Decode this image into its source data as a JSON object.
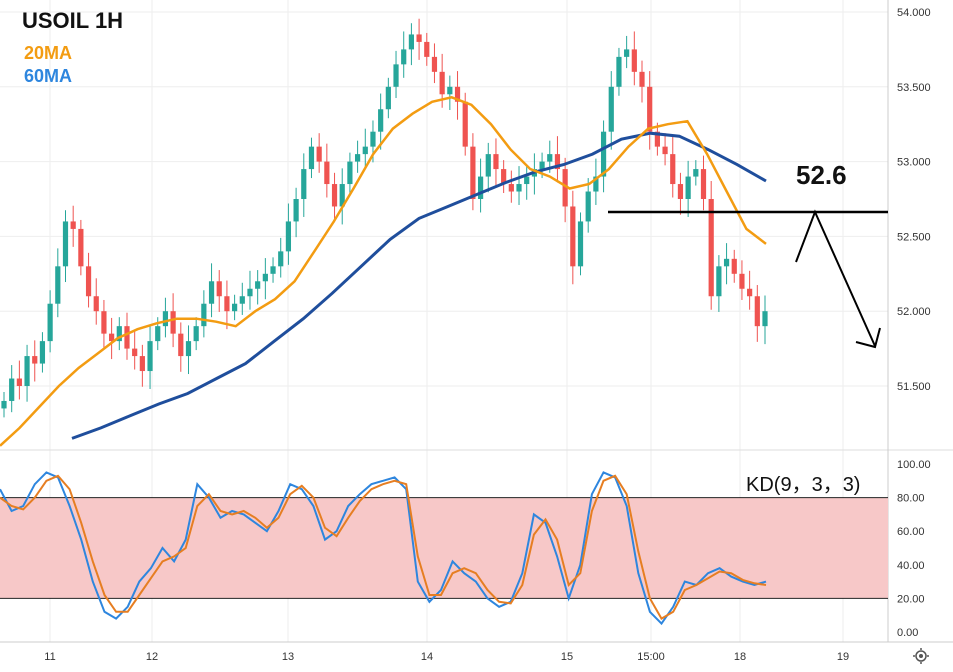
{
  "header": {
    "title": "USOIL 1H",
    "ma20_label": "20MA",
    "ma60_label": "60MA",
    "kd_label": "KD(9，3，3)",
    "level_label": "52.6"
  },
  "colors": {
    "bull": "#26a69a",
    "bear": "#ef5350",
    "ma20": "#f39c12",
    "ma60": "#1f4e9c",
    "k_line": "#2e86de",
    "d_line": "#e67e22",
    "kd_band": "#f7c8c8"
  },
  "chart_data": [
    {
      "type": "candlestick",
      "title": "USOIL 1H",
      "ylim": [
        51.1,
        54.05
      ],
      "y_ticks": [
        "54.000",
        "53.500",
        "53.000",
        "52.500",
        "52.000",
        "51.500"
      ],
      "x_ticks": [
        "11",
        "12",
        "13",
        "14",
        "15",
        "15:00",
        "18",
        "19"
      ],
      "grid": true,
      "candles_close": [
        51.4,
        51.55,
        51.5,
        51.7,
        51.65,
        51.8,
        52.05,
        52.3,
        52.6,
        52.55,
        52.3,
        52.1,
        52.0,
        51.85,
        51.8,
        51.9,
        51.75,
        51.7,
        51.6,
        51.8,
        51.9,
        52.0,
        51.85,
        51.7,
        51.8,
        51.9,
        52.05,
        52.2,
        52.1,
        52.0,
        52.05,
        52.1,
        52.15,
        52.2,
        52.25,
        52.3,
        52.4,
        52.6,
        52.75,
        52.95,
        53.1,
        53.0,
        52.85,
        52.7,
        52.85,
        53.0,
        53.05,
        53.1,
        53.2,
        53.35,
        53.5,
        53.65,
        53.75,
        53.85,
        53.8,
        53.7,
        53.6,
        53.45,
        53.5,
        53.4,
        53.1,
        52.75,
        52.9,
        53.05,
        52.95,
        52.85,
        52.8,
        52.85,
        52.9,
        52.95,
        53.0,
        53.05,
        52.95,
        52.7,
        52.3,
        52.6,
        52.8,
        52.9,
        53.2,
        53.5,
        53.7,
        53.75,
        53.6,
        53.5,
        53.2,
        53.1,
        53.05,
        52.85,
        52.75,
        52.9,
        52.95,
        52.75,
        52.1,
        52.3,
        52.35,
        52.25,
        52.15,
        52.1,
        51.9,
        52.0
      ],
      "ma20": [
        51.1,
        51.22,
        51.36,
        51.5,
        51.62,
        51.72,
        51.82,
        51.88,
        51.92,
        51.95,
        51.95,
        51.93,
        51.9,
        52.0,
        52.08,
        52.2,
        52.4,
        52.6,
        52.82,
        53.05,
        53.22,
        53.32,
        53.4,
        53.43,
        53.38,
        53.25,
        53.08,
        52.95,
        52.9,
        52.82,
        52.85,
        52.95,
        53.1,
        53.22,
        53.25,
        53.27,
        53.05,
        52.8,
        52.55,
        52.45
      ],
      "ma60": [
        51.15,
        51.22,
        51.3,
        51.38,
        51.45,
        51.55,
        51.65,
        51.8,
        51.95,
        52.12,
        52.3,
        52.48,
        52.62,
        52.7,
        52.78,
        52.86,
        52.93,
        52.98,
        53.05,
        53.15,
        53.19,
        53.17,
        53.08,
        52.98,
        52.87
      ],
      "resistance_level": 52.6
    },
    {
      "type": "line",
      "title": "KD(9，3，3)",
      "ylim": [
        0,
        100
      ],
      "y_ticks": [
        "100.00",
        "80.00",
        "60.00",
        "40.00",
        "20.00",
        "0.00"
      ],
      "band": [
        20,
        80
      ],
      "series": [
        {
          "values": [
            85,
            72,
            75,
            88,
            95,
            92,
            75,
            55,
            30,
            12,
            8,
            15,
            30,
            38,
            50,
            42,
            55,
            88,
            80,
            68,
            72,
            70,
            65,
            60,
            72,
            88,
            85,
            75,
            55,
            60,
            75,
            82,
            88,
            90,
            92,
            85,
            30,
            18,
            25,
            42,
            35,
            30,
            20,
            15,
            18,
            35,
            70,
            65,
            45,
            20,
            40,
            82,
            95,
            92,
            75,
            35,
            12,
            5,
            15,
            30,
            28,
            35,
            38,
            33,
            30,
            28,
            30
          ]
        },
        {
          "values": [
            80,
            75,
            73,
            80,
            90,
            93,
            85,
            65,
            42,
            22,
            12,
            12,
            22,
            32,
            42,
            45,
            50,
            75,
            82,
            72,
            70,
            72,
            68,
            62,
            68,
            82,
            87,
            80,
            62,
            57,
            68,
            78,
            85,
            88,
            90,
            88,
            45,
            22,
            22,
            35,
            38,
            35,
            25,
            18,
            17,
            28,
            58,
            67,
            55,
            28,
            35,
            72,
            90,
            93,
            82,
            48,
            20,
            8,
            12,
            25,
            28,
            32,
            36,
            35,
            31,
            29,
            28
          ]
        }
      ]
    }
  ]
}
